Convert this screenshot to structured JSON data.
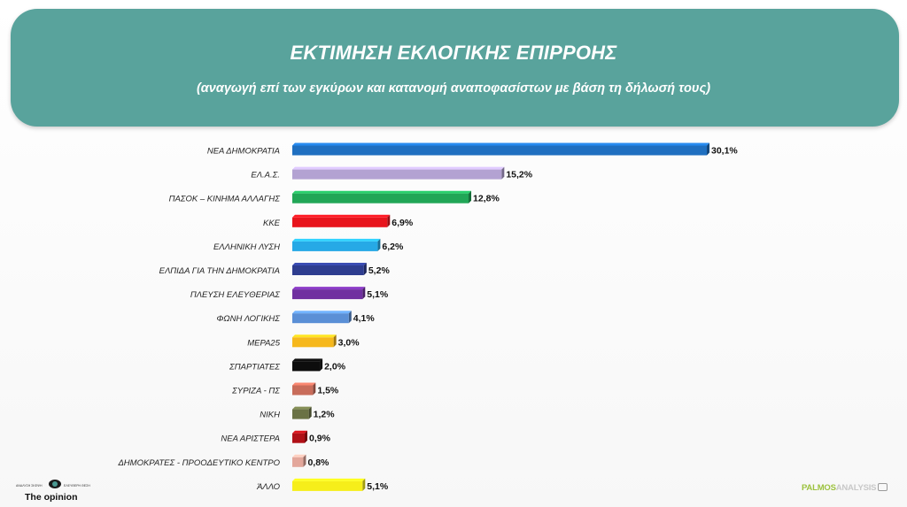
{
  "header": {
    "title": "ΕΚΤΙΜΗΣΗ ΕΚΛΟΓΙΚΗΣ ΕΠΙΡΡΟΗΣ",
    "subtitle": "(αναγωγή επί των εγκύρων και κατανομή αναποφασίστων με βάση τη δήλωσή τους)"
  },
  "chart_data": {
    "type": "bar",
    "orientation": "horizontal",
    "title": "ΕΚΤΙΜΗΣΗ ΕΚΛΟΓΙΚΗΣ ΕΠΙΡΡΟΗΣ",
    "subtitle": "(αναγωγή επί των εγκύρων και κατανομή αναποφασίστων με βάση τη δήλωσή τους)",
    "xlabel": "",
    "ylabel": "",
    "xlim": [
      0,
      30.1
    ],
    "grid": false,
    "legend": "none",
    "categories": [
      "ΝΕΑ ΔΗΜΟΚΡΑΤΙΑ",
      "ΕΛ.Α.Σ.",
      "ΠΑΣΟΚ – ΚΙΝΗΜΑ ΑΛΛΑΓΗΣ",
      "ΚΚΕ",
      "ΕΛΛΗΝΙΚΗ ΛΥΣΗ",
      "ΕΛΠΙΔΑ ΓΙΑ ΤΗΝ ΔΗΜΟΚΡΑΤΙΑ",
      "ΠΛΕΥΣΗ ΕΛΕΥΘΕΡΙΑΣ",
      "ΦΩΝΗ ΛΟΓΙΚΗΣ",
      "ΜΕΡΑ25",
      "ΣΠΑΡΤΙΑΤΕΣ",
      "ΣΥΡΙΖΑ - ΠΣ",
      "ΝΙΚΗ",
      "ΝΕΑ ΑΡΙΣΤΕΡΑ",
      "ΔΗΜΟΚΡΑΤΕΣ - ΠΡΟΟΔΕΥΤΙΚΟ ΚΕΝΤΡΟ",
      "ΆΛΛΟ"
    ],
    "values": [
      30.1,
      15.2,
      12.8,
      6.9,
      6.2,
      5.2,
      5.1,
      4.1,
      3.0,
      2.0,
      1.5,
      1.2,
      0.9,
      0.8,
      5.1
    ],
    "value_labels": [
      "30,1%",
      "15,2%",
      "12,8%",
      "6,9%",
      "6,2%",
      "5,2%",
      "5,1%",
      "4,1%",
      "3,0%",
      "2,0%",
      "1,5%",
      "1,2%",
      "0,9%",
      "0,8%",
      "5,1%"
    ],
    "colors": [
      "#1f6fc0",
      "#b3a2d2",
      "#21a656",
      "#e8141c",
      "#26a9e6",
      "#2e3d8f",
      "#7030a0",
      "#5a8fd6",
      "#f6b81c",
      "#0d0d0d",
      "#c86c5a",
      "#6a7245",
      "#b01016",
      "#e3a79b",
      "#f6ee1a"
    ]
  },
  "logos": {
    "left_small_left": "ΑΝΑΛΥΣΗ ΣΚΕΨΗ",
    "left_small_right": "ΕΛΕΥΘΕΡΗ ΘΕΣΗ",
    "left_name": "The opinion",
    "right_part1": "PALMOS",
    "right_part2": "ANALYSIS"
  }
}
